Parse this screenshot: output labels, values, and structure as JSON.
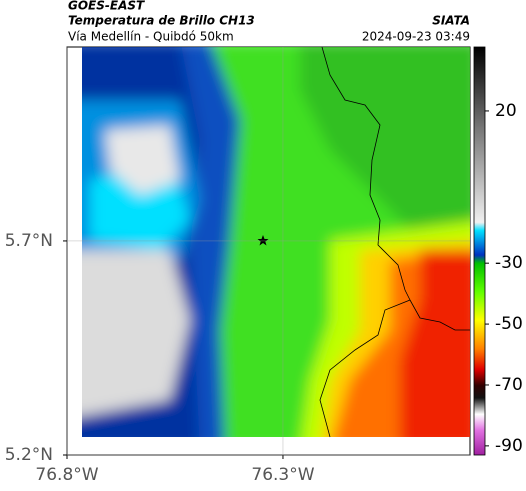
{
  "header": {
    "source": "GOES-EAST",
    "title": "Temperatura de Brillo CH13",
    "subtitle": "Vía Medellín - Quibdó 50km",
    "brand": "SIATA",
    "timestamp": "2024-09-23 03:49"
  },
  "map": {
    "xlim": [
      -76.8,
      -75.867
    ],
    "ylim": [
      5.2,
      6.153
    ],
    "xticks": [
      {
        "value": -76.8,
        "label": "76.8°W"
      },
      {
        "value": -76.3,
        "label": "76.3°W"
      }
    ],
    "yticks": [
      {
        "value": 5.2,
        "label": "5.2°N"
      },
      {
        "value": 5.7,
        "label": "5.7°N"
      }
    ]
  },
  "colorbar": {
    "lim": [
      -93,
      41
    ],
    "ticks": [
      20,
      -30,
      -50,
      -70,
      -90
    ]
  }
}
